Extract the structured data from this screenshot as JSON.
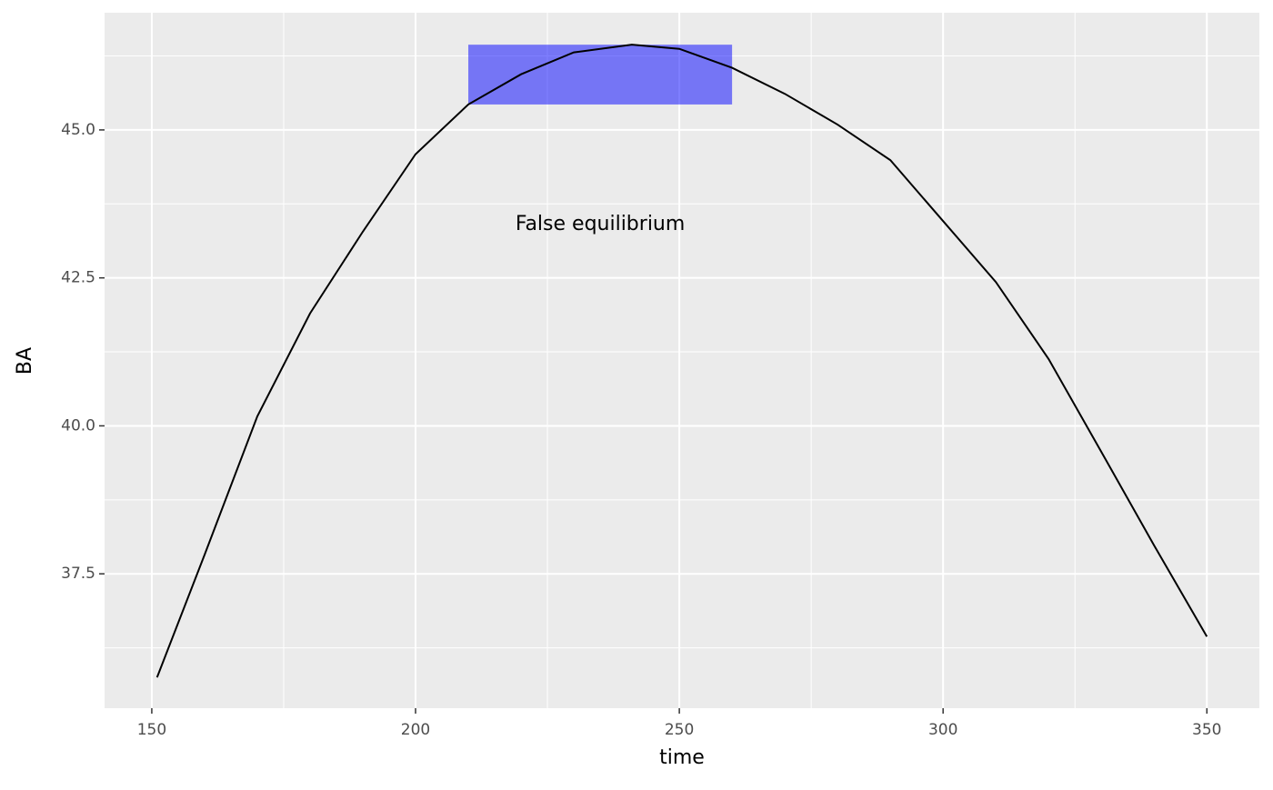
{
  "chart_data": {
    "type": "line",
    "x_label": "time",
    "y_label": "BA",
    "x": [
      151,
      160,
      170,
      180,
      190,
      200,
      210,
      220,
      230,
      241,
      250,
      260,
      270,
      280,
      290,
      300,
      310,
      320,
      330,
      340,
      350
    ],
    "series": [
      {
        "color": "#000000",
        "values": [
          35.75,
          37.82,
          40.16,
          41.9,
          43.28,
          44.59,
          45.43,
          45.94,
          46.31,
          46.44,
          46.37,
          46.05,
          45.61,
          45.09,
          44.49,
          43.46,
          42.43,
          41.13,
          39.56,
          37.98,
          36.44
        ]
      }
    ],
    "xlim": [
      141.05,
      359.95
    ],
    "xticks": [
      150,
      200,
      250,
      300,
      350
    ],
    "ylim": [
      35.23,
      46.98
    ],
    "yticks": [
      {
        "value": 37.5,
        "label": "37.5"
      },
      {
        "value": 40,
        "label": "40.0"
      },
      {
        "value": 42.5,
        "label": "42.5"
      },
      {
        "value": 45,
        "label": "45.0"
      }
    ],
    "grid": true,
    "rect": {
      "xmin": 210,
      "xmax": 260,
      "ymin": 45.43,
      "ymax": 46.44,
      "color": "#0000ff",
      "opacity": 0.5
    },
    "annotation": {
      "label": "False equilibrium",
      "x": 235,
      "y": 43.4
    }
  }
}
